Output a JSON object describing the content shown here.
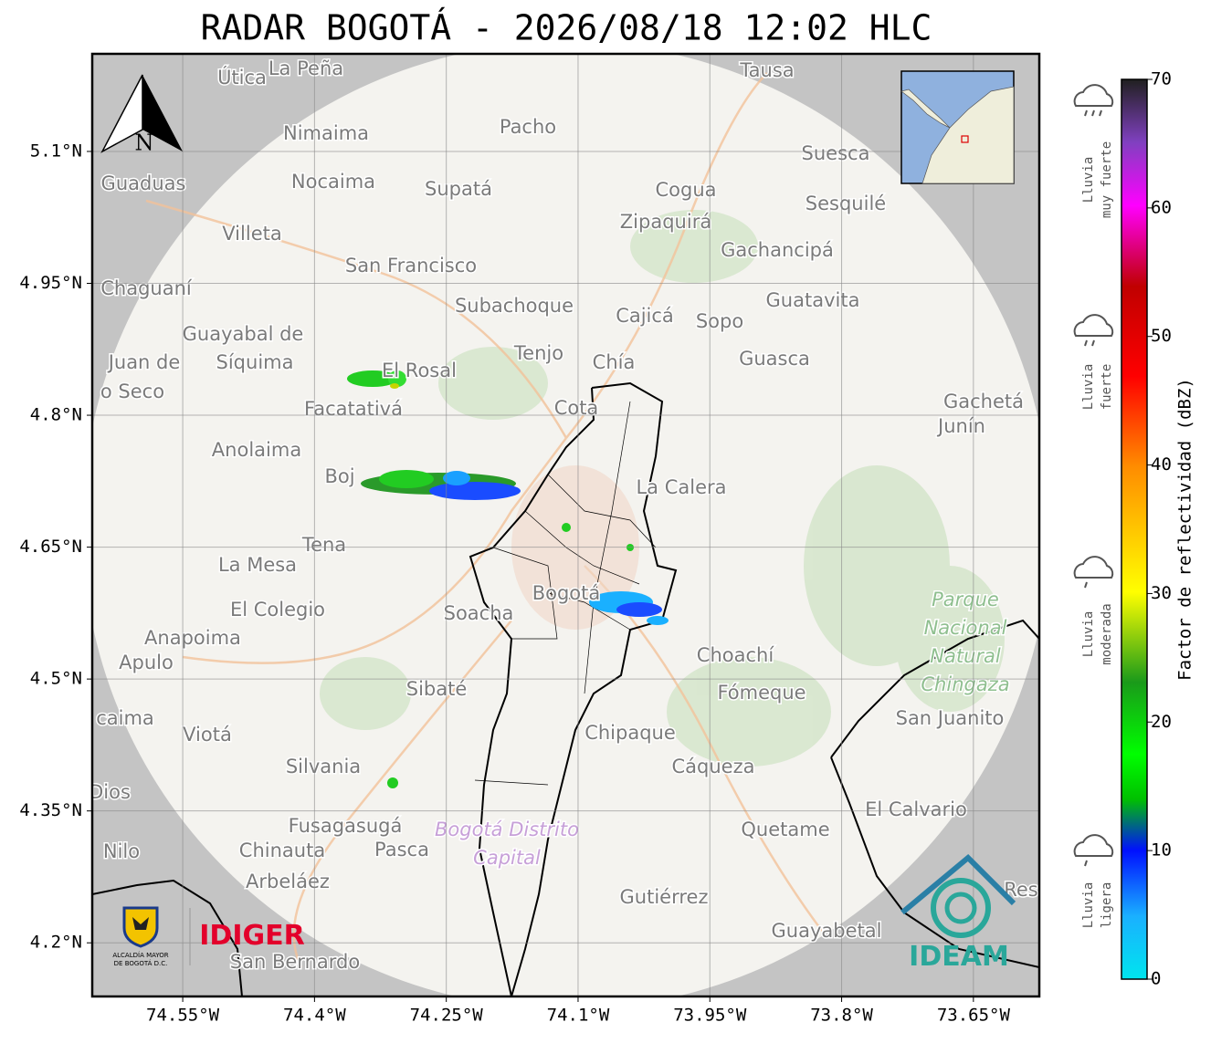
{
  "title": "RADAR BOGOTÁ - 2026/08/18 12:02 HLC",
  "map": {
    "xlim": [
      -74.653,
      -73.575
    ],
    "ylim": [
      4.139,
      5.211
    ],
    "grid": true,
    "north": "N",
    "xticks": [
      {
        "value": -74.55,
        "label": "74.55°W"
      },
      {
        "value": -74.4,
        "label": "74.4°W"
      },
      {
        "value": -74.25,
        "label": "74.25°W"
      },
      {
        "value": -74.1,
        "label": "74.1°W"
      },
      {
        "value": -73.95,
        "label": "73.95°W"
      },
      {
        "value": -73.8,
        "label": "73.8°W"
      },
      {
        "value": -73.65,
        "label": "73.65°W"
      }
    ],
    "yticks": [
      {
        "value": 5.1,
        "label": "5.1°N"
      },
      {
        "value": 4.95,
        "label": "4.95°N"
      },
      {
        "value": 4.8,
        "label": "4.8°N"
      },
      {
        "value": 4.65,
        "label": "4.65°N"
      },
      {
        "value": 4.5,
        "label": "4.5°N"
      },
      {
        "value": 4.35,
        "label": "4.35°N"
      },
      {
        "value": 4.2,
        "label": "4.2°N"
      }
    ],
    "places": [
      "Útica",
      "La Peña",
      "Tausa",
      "Pacho",
      "Nimaima",
      "Guaduas",
      "Nocaima",
      "Supatá",
      "Cogua",
      "Suesca",
      "Sesquilé",
      "Zipaquirá",
      "Villeta",
      "Gachancipá",
      "San Francisco",
      "Chaguaní",
      "Guatavita",
      "Subachoque",
      "Cajicá",
      "Sopo",
      "Guayabal de",
      "Síquima",
      "Juan de",
      "o Seco",
      "Tenjo",
      "Chía",
      "Guasca",
      "El Rosal",
      "Facatativá",
      "Cota",
      "Gachetá",
      "Junín",
      "Anolaima",
      "Boj",
      "La Calera",
      "Tena",
      "La Mesa",
      "El Colegio",
      "Soacha",
      "Bogotá",
      "Anapoima",
      "Apulo",
      "Choachí",
      "Sibaté",
      "Fómeque",
      "San Juanito",
      "caima",
      "Viotá",
      "Chipaque",
      "Silvania",
      "Cáqueza",
      "Dios",
      "El Calvario",
      "Fusagasugá",
      "Quetame",
      "Nilo",
      "Chinauta",
      "Pasca",
      "Arbeláez",
      "Gutiérrez",
      "Guayabetal",
      "San Bernardo",
      "Res"
    ],
    "park": [
      "Parque",
      "Nacional",
      "Natural",
      "Chingaza"
    ],
    "district": [
      "Bogotá Distrito",
      "Capital"
    ]
  },
  "colorbar": {
    "label": "Factor de reflectividad (dBZ)",
    "lim": [
      0,
      70
    ],
    "ticks": [
      0,
      10,
      20,
      30,
      40,
      50,
      60,
      70
    ]
  },
  "legend": [
    {
      "lines": [
        "Lluvia",
        "muy fuerte"
      ]
    },
    {
      "lines": [
        "Lluvia",
        "fuerte"
      ]
    },
    {
      "lines": [
        "Lluvia",
        "moderada"
      ]
    },
    {
      "lines": [
        "Lluvia",
        "ligera"
      ]
    }
  ],
  "logos": {
    "alcaldia": [
      "ALCALDÍA MAYOR",
      "DE BOGOTÁ D.C."
    ],
    "idiger": "IDIGER",
    "ideam": "IDEAM"
  }
}
